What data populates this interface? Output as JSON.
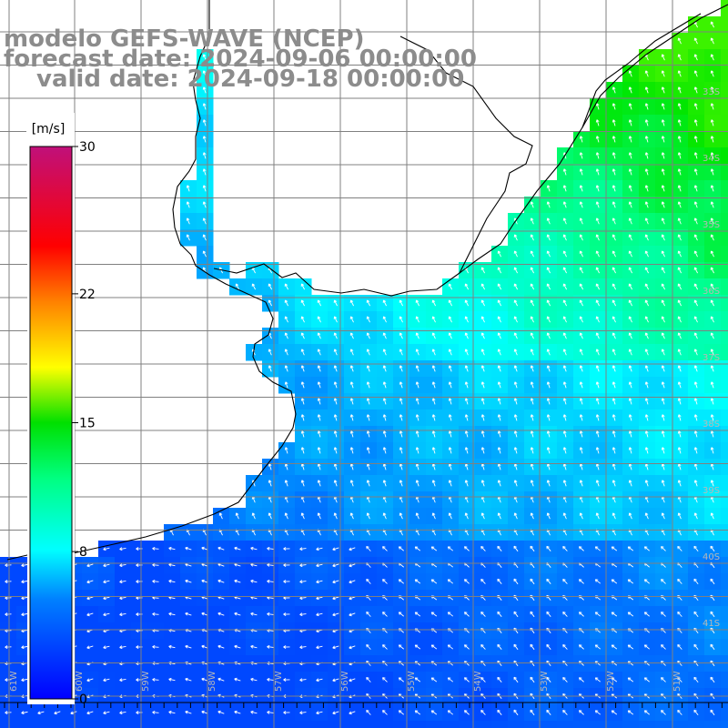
{
  "title": {
    "line1": "modelo GEFS-WAVE (NCEP)",
    "line2": "forecast date: 2024-09-06 00:00:00",
    "line3": "valid date: 2024-09-18 00:00:00"
  },
  "legend": {
    "unit": "[m/s]",
    "ticks": [
      "30",
      "22",
      "15",
      "8",
      "0"
    ],
    "tick_values": [
      30,
      22,
      15,
      8,
      0
    ],
    "colors": [
      "#0000ff",
      "#0080ff",
      "#00e0ff",
      "#00ff80",
      "#00e000",
      "#80ff00",
      "#ffff00",
      "#ffa000",
      "#ff4000",
      "#ff0000",
      "#e0006a",
      "#b0207a"
    ]
  },
  "grid": {
    "lat_labels": [
      "33S",
      "34S",
      "35S",
      "36S",
      "37S",
      "38S",
      "39S",
      "40S",
      "41S"
    ],
    "lon_labels": [
      "61W",
      "60W",
      "59W",
      "58W",
      "57W",
      "56W",
      "55W",
      "54W",
      "53W",
      "52W",
      "51W"
    ]
  }
}
